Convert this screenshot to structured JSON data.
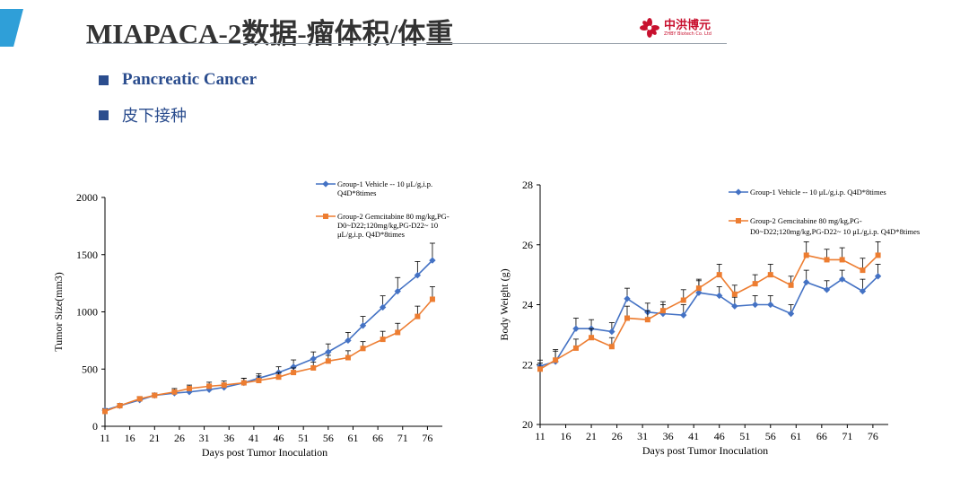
{
  "header": {
    "title": "MIAPACA-2数据-瘤体积/体重",
    "logo_text": "中洪博元",
    "logo_sub": "ZHBY Biotech Co. Ltd"
  },
  "bullets": [
    {
      "label": "Pancreatic Cancer"
    },
    {
      "label": "皮下接种"
    }
  ],
  "colors": {
    "series1": "#4472c4",
    "series2": "#ed7d31",
    "accent": "#2f9fd8",
    "bullet": "#2b4d8e"
  },
  "chart_data": [
    {
      "type": "line",
      "ylabel": "Tumor Size(mm3)",
      "xlabel": "Days post Tumor Inoculation",
      "ylim": [
        0,
        2000
      ],
      "xlim": [
        11,
        79
      ],
      "xticks": [
        11,
        16,
        21,
        26,
        31,
        36,
        41,
        46,
        51,
        56,
        61,
        66,
        71,
        76
      ],
      "yticks": [
        0,
        500,
        1000,
        1500,
        2000
      ],
      "x": [
        11,
        14,
        18,
        21,
        25,
        28,
        32,
        35,
        39,
        42,
        46,
        49,
        53,
        56,
        60,
        63,
        67,
        70,
        74,
        77
      ],
      "series": [
        {
          "name": "Group-1 Vehicle -- 10 μL/g,i.p. Q4D*8times",
          "legend_lines": [
            "Group-1 Vehicle -- 10 μL/g,i.p.",
            "Q4D*8times"
          ],
          "values": [
            140,
            180,
            230,
            270,
            290,
            300,
            320,
            340,
            380,
            420,
            470,
            520,
            590,
            650,
            750,
            880,
            1040,
            1180,
            1320,
            1450
          ],
          "errors": [
            15,
            20,
            25,
            20,
            25,
            30,
            35,
            35,
            40,
            40,
            50,
            60,
            60,
            70,
            70,
            80,
            100,
            120,
            120,
            150
          ]
        },
        {
          "name": "Group-2 Gemcitabine 80 mg/kg,PG-D0~D22;120mg/kg,PG-D22~ 10 μL/g,i.p. Q4D*8times",
          "legend_lines": [
            "Group-2  Gemcitabine 80 mg/kg,PG-",
            "D0~D22;120mg/kg,PG-D22~ 10",
            "μL/g,i.p. Q4D*8times"
          ],
          "values": [
            130,
            180,
            240,
            270,
            300,
            330,
            350,
            360,
            380,
            400,
            430,
            470,
            510,
            570,
            600,
            680,
            760,
            820,
            960,
            1110
          ],
          "errors": [
            15,
            20,
            20,
            20,
            30,
            30,
            35,
            35,
            40,
            40,
            40,
            40,
            50,
            50,
            60,
            60,
            70,
            80,
            90,
            110
          ]
        }
      ]
    },
    {
      "type": "line",
      "ylabel": "Body Weight (g)",
      "xlabel": "Days post Tumor Inoculation",
      "ylim": [
        20,
        28
      ],
      "xlim": [
        11,
        79
      ],
      "xticks": [
        11,
        16,
        21,
        26,
        31,
        36,
        41,
        46,
        51,
        56,
        61,
        66,
        71,
        76
      ],
      "yticks": [
        20,
        22,
        24,
        26,
        28
      ],
      "x": [
        11,
        14,
        18,
        21,
        25,
        28,
        32,
        35,
        39,
        42,
        46,
        49,
        53,
        56,
        60,
        63,
        67,
        70,
        74,
        77
      ],
      "series": [
        {
          "name": "Group-1 Vehicle -- 10 μL/g,i.p. Q4D*8times",
          "legend_lines": [
            "Group-1 Vehicle -- 10 μL/g,i.p. Q4D*8times"
          ],
          "values": [
            21.95,
            22.1,
            23.2,
            23.2,
            23.1,
            24.2,
            23.75,
            23.7,
            23.65,
            24.4,
            24.3,
            23.95,
            24.0,
            24.0,
            23.7,
            24.75,
            24.5,
            24.85,
            24.45,
            24.95
          ],
          "errors": [
            0.2,
            0.4,
            0.35,
            0.3,
            0.3,
            0.35,
            0.3,
            0.3,
            0.35,
            0.4,
            0.3,
            0.3,
            0.3,
            0.3,
            0.3,
            0.4,
            0.3,
            0.3,
            0.4,
            0.4
          ]
        },
        {
          "name": "Group-2 Gemcitabine 80 mg/kg,PG-D0~D22;120mg/kg,PG-D22~ 10 μL/g,i.p. Q4D*8times",
          "legend_lines": [
            "Group-2  Gemcitabine 80 mg/kg,PG-",
            "D0~D22;120mg/kg,PG-D22~ 10 μL/g,i.p. Q4D*8times"
          ],
          "values": [
            21.85,
            22.15,
            22.55,
            22.9,
            22.6,
            23.55,
            23.5,
            23.8,
            24.15,
            24.55,
            25.0,
            24.35,
            24.7,
            25.0,
            24.65,
            25.65,
            25.5,
            25.5,
            25.15,
            25.65
          ],
          "errors": [
            0.2,
            0.3,
            0.3,
            0.3,
            0.3,
            0.4,
            0.3,
            0.3,
            0.35,
            0.3,
            0.35,
            0.3,
            0.3,
            0.35,
            0.3,
            0.45,
            0.35,
            0.4,
            0.4,
            0.45
          ]
        }
      ]
    }
  ]
}
